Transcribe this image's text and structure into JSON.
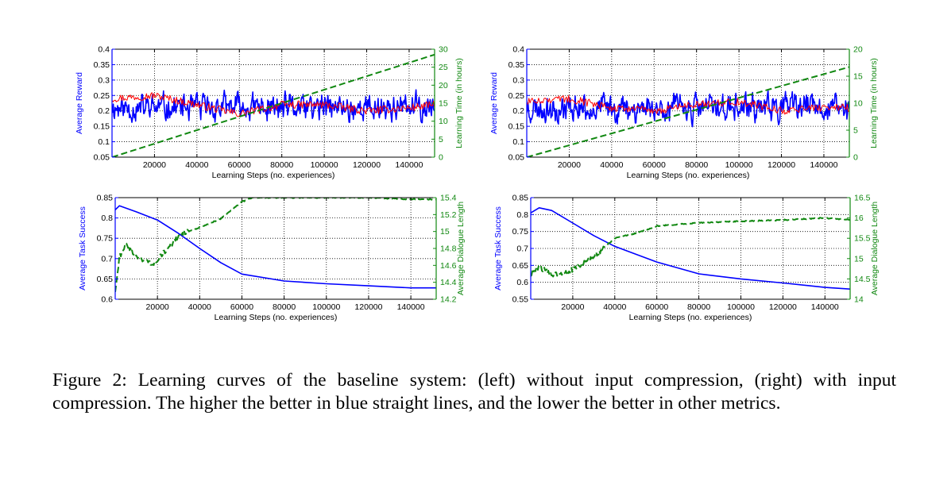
{
  "caption": "Figure 2: Learning curves of the baseline system: (left) without input compression, (right) with input compression. The higher the better in blue straight lines, and the lower the better in other metrics.",
  "colors": {
    "blue": "#0000ff",
    "green": "#118811",
    "red": "#ff0000",
    "axis": "#000000"
  },
  "chart_data": [
    {
      "type": "line",
      "panel": "top-left",
      "xlabel": "Learning Steps (no. experiences)",
      "ylabel": "Average Reward",
      "y2label": "Learning Time (in hours)",
      "xlim": [
        0,
        152000
      ],
      "ylim": [
        0.05,
        0.4
      ],
      "y2lim": [
        0,
        30
      ],
      "xticks": [
        20000,
        40000,
        60000,
        80000,
        100000,
        120000,
        140000
      ],
      "yticks": [
        0.05,
        0.1,
        0.15,
        0.2,
        0.25,
        0.3,
        0.35,
        0.4
      ],
      "y2ticks": [
        0,
        5,
        10,
        15,
        20,
        25,
        30
      ],
      "grid": true,
      "series": [
        {
          "style": "noisy",
          "axis": "left",
          "color": "blue",
          "x": [
            0,
            152000
          ],
          "mean": 0.21,
          "amplitude": 0.07,
          "seed": 11
        },
        {
          "style": "smooth",
          "axis": "left",
          "color": "red",
          "x": [
            0,
            20000,
            40000,
            60000,
            80000,
            100000,
            120000,
            140000,
            152000
          ],
          "y": [
            0.24,
            0.25,
            0.22,
            0.19,
            0.22,
            0.22,
            0.2,
            0.21,
            0.22
          ]
        },
        {
          "style": "dashed",
          "axis": "right",
          "color": "green",
          "x": [
            0,
            152000
          ],
          "y": [
            0,
            28.5
          ]
        }
      ]
    },
    {
      "type": "line",
      "panel": "top-right",
      "xlabel": "Learning Steps (no. experiences)",
      "ylabel": "Average Reward",
      "y2label": "Learning Time (in hours)",
      "xlim": [
        0,
        152000
      ],
      "ylim": [
        0.05,
        0.4
      ],
      "y2lim": [
        0,
        20
      ],
      "xticks": [
        20000,
        40000,
        60000,
        80000,
        100000,
        120000,
        140000
      ],
      "yticks": [
        0.05,
        0.1,
        0.15,
        0.2,
        0.25,
        0.3,
        0.35,
        0.4
      ],
      "y2ticks": [
        0,
        5,
        10,
        15,
        20
      ],
      "grid": true,
      "series": [
        {
          "style": "noisy",
          "axis": "left",
          "color": "blue",
          "x": [
            0,
            152000
          ],
          "mean": 0.21,
          "amplitude": 0.07,
          "seed": 23
        },
        {
          "style": "smooth",
          "axis": "left",
          "color": "red",
          "x": [
            0,
            20000,
            40000,
            60000,
            80000,
            100000,
            120000,
            140000,
            152000
          ],
          "y": [
            0.23,
            0.24,
            0.21,
            0.2,
            0.22,
            0.23,
            0.2,
            0.21,
            0.21
          ]
        },
        {
          "style": "dashed",
          "axis": "right",
          "color": "green",
          "x": [
            0,
            152000
          ],
          "y": [
            0,
            16.7
          ]
        }
      ]
    },
    {
      "type": "line",
      "panel": "bottom-left",
      "xlabel": "Learning Steps (no. experiences)",
      "ylabel": "Average Task Success",
      "y2label": "Average Dialogue Length",
      "xlim": [
        0,
        152000
      ],
      "ylim": [
        0.6,
        0.85
      ],
      "y2lim": [
        14.2,
        15.4
      ],
      "xticks": [
        20000,
        40000,
        60000,
        80000,
        100000,
        120000,
        140000
      ],
      "yticks": [
        0.6,
        0.65,
        0.7,
        0.75,
        0.8,
        0.85
      ],
      "y2ticks": [
        14.2,
        14.4,
        14.6,
        14.8,
        15,
        15.2,
        15.4
      ],
      "y2ticklabels": [
        "14.2",
        "14.4",
        "14.6",
        "14.8",
        "15",
        "15.2",
        "15.4"
      ],
      "grid": true,
      "series": [
        {
          "style": "solid",
          "axis": "left",
          "color": "blue",
          "x": [
            0,
            2000,
            10000,
            20000,
            30000,
            40000,
            50000,
            60000,
            80000,
            100000,
            120000,
            140000,
            152000
          ],
          "y": [
            0.82,
            0.83,
            0.815,
            0.795,
            0.762,
            0.725,
            0.69,
            0.662,
            0.645,
            0.638,
            0.633,
            0.628,
            0.628
          ]
        },
        {
          "style": "dashed-noisy",
          "axis": "right",
          "color": "green",
          "x": [
            0,
            2000,
            5000,
            10000,
            18000,
            25000,
            30000,
            40000,
            50000,
            60000,
            65000,
            80000,
            100000,
            120000,
            140000,
            152000
          ],
          "y": [
            14.3,
            14.7,
            14.85,
            14.7,
            14.62,
            14.8,
            14.95,
            15.05,
            15.15,
            15.35,
            15.4,
            15.4,
            15.4,
            15.4,
            15.38,
            15.38
          ]
        }
      ]
    },
    {
      "type": "line",
      "panel": "bottom-right",
      "xlabel": "Learning Steps (no. experiences)",
      "ylabel": "Average Task Success",
      "y2label": "Average Dialogue Length",
      "xlim": [
        0,
        152000
      ],
      "ylim": [
        0.55,
        0.85
      ],
      "y2lim": [
        14,
        16.5
      ],
      "xticks": [
        20000,
        40000,
        60000,
        80000,
        100000,
        120000,
        140000
      ],
      "yticks": [
        0.55,
        0.6,
        0.65,
        0.7,
        0.75,
        0.8,
        0.85
      ],
      "y2ticks": [
        14,
        14.5,
        15,
        15.5,
        16,
        16.5
      ],
      "y2ticklabels": [
        "14",
        "14.5",
        "15",
        "15.5",
        "16",
        "16.5"
      ],
      "grid": true,
      "series": [
        {
          "style": "solid",
          "axis": "left",
          "color": "blue",
          "x": [
            0,
            4000,
            10000,
            20000,
            30000,
            40000,
            50000,
            60000,
            80000,
            100000,
            120000,
            140000,
            152000
          ],
          "y": [
            0.805,
            0.82,
            0.812,
            0.775,
            0.738,
            0.706,
            0.683,
            0.66,
            0.625,
            0.61,
            0.598,
            0.585,
            0.58
          ]
        },
        {
          "style": "dashed-noisy",
          "axis": "right",
          "color": "green",
          "x": [
            0,
            4000,
            10000,
            20000,
            30000,
            40000,
            50000,
            60000,
            80000,
            100000,
            120000,
            140000,
            152000
          ],
          "y": [
            14.6,
            14.8,
            14.6,
            14.72,
            15.05,
            15.5,
            15.62,
            15.8,
            15.88,
            15.92,
            15.95,
            16.0,
            15.95
          ]
        }
      ]
    }
  ]
}
